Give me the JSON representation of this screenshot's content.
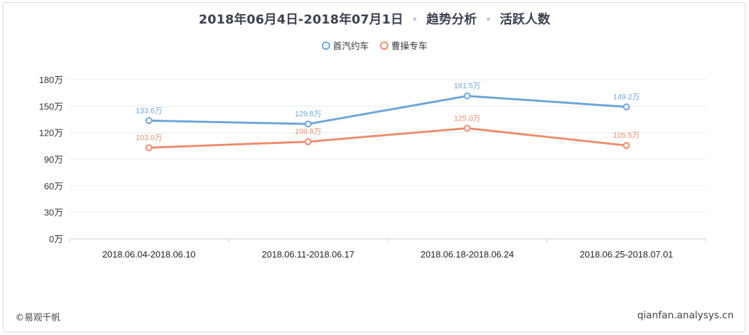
{
  "title": {
    "date_range": "2018年06月4日-2018年07月1日",
    "section": "趋势分析",
    "metric": "活跃人数",
    "separator": "•"
  },
  "footer": {
    "brand": "©易观千帆",
    "site": "qianfan.analysys.cn"
  },
  "colors": {
    "series1": "#6aa6da",
    "series2": "#ec8c6d",
    "grid": "#ececec",
    "axis": "#cfcfcf"
  },
  "chart_data": {
    "type": "line",
    "title": "2018年06月4日-2018年07月1日 • 趋势分析 • 活跃人数",
    "categories": [
      "2018.06.04-2018.06.10",
      "2018.06.11-2018.06.17",
      "2018.06.18-2018.06.24",
      "2018.06.25-2018.07.01"
    ],
    "series": [
      {
        "name": "首汽约车",
        "values": [
          133.6,
          129.8,
          161.5,
          149.2
        ],
        "labels": [
          "133.6万",
          "129.8万",
          "161.5万",
          "149.2万"
        ]
      },
      {
        "name": "曹操专车",
        "values": [
          103.0,
          109.8,
          125.0,
          105.5
        ],
        "labels": [
          "103.0万",
          "109.8万",
          "125.0万",
          "105.5万"
        ]
      }
    ],
    "yticks": [
      "0万",
      "30万",
      "60万",
      "90万",
      "120万",
      "150万",
      "180万"
    ],
    "ytick_values": [
      0,
      30,
      60,
      90,
      120,
      150,
      180
    ],
    "ylim": [
      0,
      180
    ],
    "grid": true,
    "legend_position": "top-center"
  }
}
